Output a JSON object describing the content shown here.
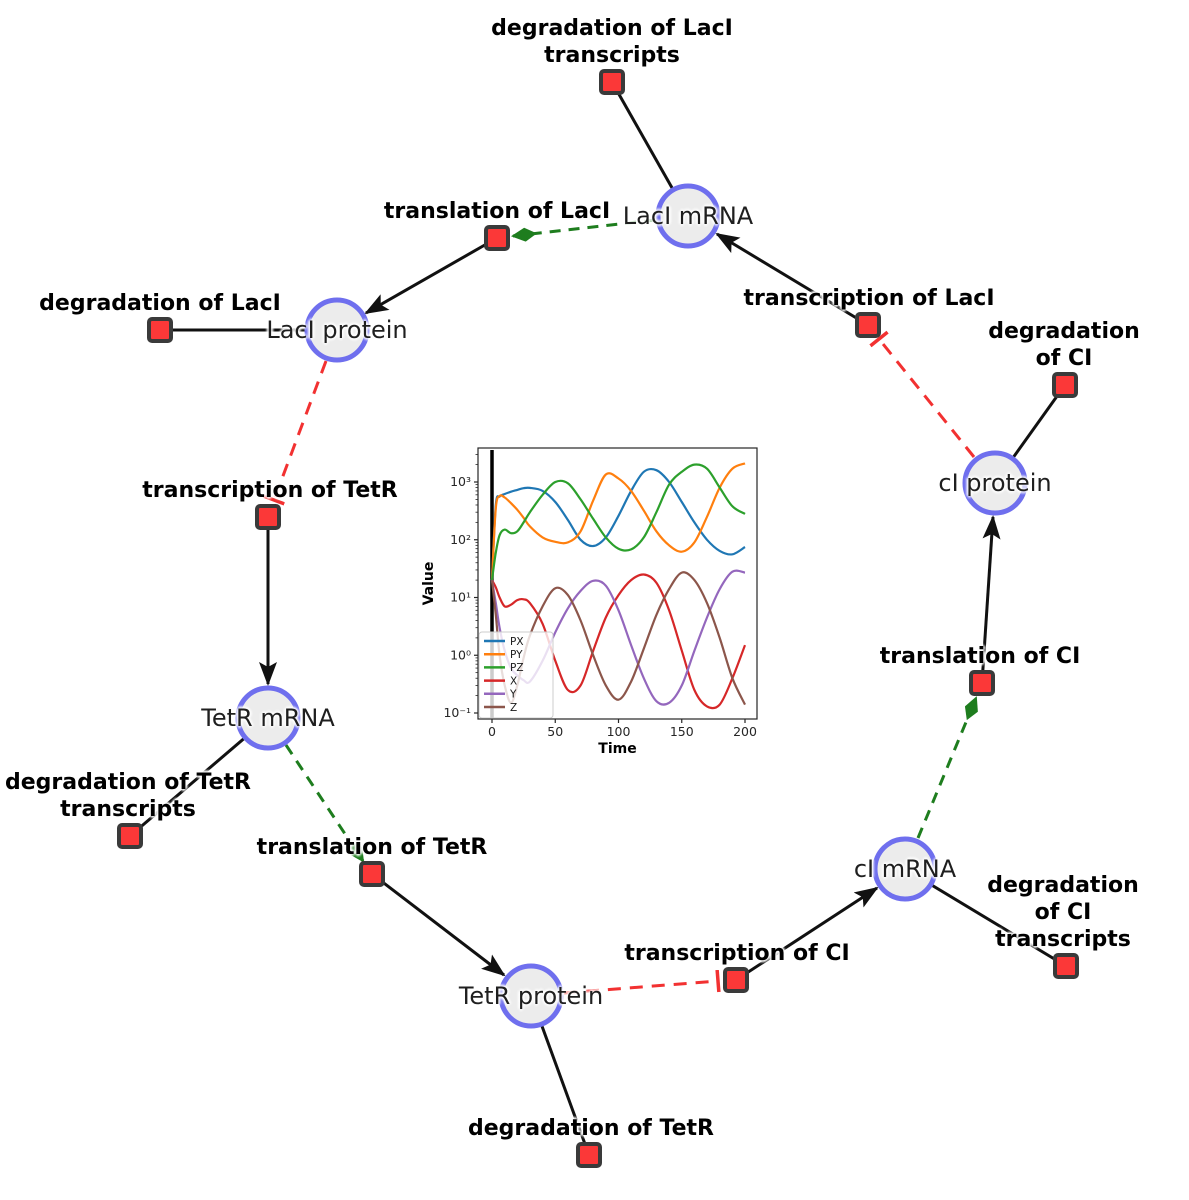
{
  "diagram": {
    "title": "repressilator reaction network",
    "species": [
      {
        "id": "laci-mrna",
        "label": "LacI mRNA"
      },
      {
        "id": "laci-protein",
        "label": "LacI protein"
      },
      {
        "id": "tetr-mrna",
        "label": "TetR mRNA"
      },
      {
        "id": "tetr-protein",
        "label": "TetR protein"
      },
      {
        "id": "ci-mrna",
        "label": "cI mRNA"
      },
      {
        "id": "ci-protein",
        "label": "cI protein"
      }
    ],
    "reactions": [
      {
        "id": "degradation-laci-transcripts",
        "label": "degradation of LacI\ntranscripts"
      },
      {
        "id": "translation-laci",
        "label": "translation of LacI"
      },
      {
        "id": "transcription-laci",
        "label": "transcription of LacI"
      },
      {
        "id": "degradation-laci",
        "label": "degradation of LacI"
      },
      {
        "id": "transcription-tetr",
        "label": "transcription of TetR"
      },
      {
        "id": "degradation-ci",
        "label": "degradation of CI"
      },
      {
        "id": "translation-ci",
        "label": "translation of CI"
      },
      {
        "id": "degradation-tetr-transcripts",
        "label": "degradation of TetR\ntranscripts"
      },
      {
        "id": "translation-tetr",
        "label": "translation of TetR"
      },
      {
        "id": "transcription-ci",
        "label": "transcription of CI"
      },
      {
        "id": "degradation-ci-transcripts",
        "label": "degradation of CI\ntranscripts"
      },
      {
        "id": "degradation-tetr",
        "label": "degradation of TetR"
      }
    ],
    "edge_types": {
      "reactant_product": "black solid, arrowhead",
      "modifier": "green dashed, diamond head",
      "inhibition": "red dashed, tee head"
    }
  },
  "colors": {
    "species_fill": "#ececec",
    "species_stroke": "#6f6fee",
    "reaction_fill": "#fb3838",
    "reaction_stroke": "#3a3a3a",
    "edge_black": "#111111",
    "edge_modifier_green": "#1e7d1e",
    "edge_inhibition_red": "#f23131"
  },
  "chart_data": {
    "type": "line",
    "title": "",
    "xlabel": "Time",
    "ylabel": "Value",
    "yscale": "log",
    "xlim": [
      -10,
      210
    ],
    "ylim_log10": [
      -1.1,
      3.59
    ],
    "x_ticks": [
      0,
      50,
      100,
      150,
      200
    ],
    "y_tick_labels": [
      "10⁻¹",
      "10⁰",
      "10¹",
      "10²",
      "10³"
    ],
    "y_tick_decades": [
      -1,
      0,
      1,
      2,
      3
    ],
    "grid": false,
    "legend_position": "lower left",
    "vline_x": 0,
    "x": [
      0,
      3,
      6,
      10,
      15,
      20,
      25,
      30,
      40,
      50,
      60,
      70,
      80,
      90,
      100,
      110,
      120,
      130,
      140,
      150,
      160,
      170,
      180,
      190,
      200
    ],
    "series": [
      {
        "name": "PX",
        "color": "#1f77b4",
        "values": [
          20,
          400,
          560,
          620,
          680,
          730,
          780,
          790,
          700,
          450,
          220,
          100,
          78,
          110,
          260,
          700,
          1500,
          1600,
          1000,
          450,
          200,
          100,
          64,
          56,
          75
        ]
      },
      {
        "name": "PY",
        "color": "#ff7f0e",
        "values": [
          20,
          350,
          570,
          540,
          430,
          330,
          240,
          170,
          110,
          92,
          90,
          140,
          480,
          1350,
          1150,
          700,
          320,
          140,
          80,
          62,
          90,
          250,
          800,
          1700,
          2100
        ]
      },
      {
        "name": "PZ",
        "color": "#2ca02c",
        "values": [
          20,
          60,
          120,
          150,
          130,
          140,
          200,
          300,
          600,
          1000,
          950,
          500,
          230,
          110,
          70,
          68,
          110,
          300,
          900,
          1500,
          2000,
          1700,
          800,
          380,
          280
        ]
      },
      {
        "name": "X",
        "color": "#d62728",
        "values": [
          20,
          15,
          10,
          7,
          7.5,
          9,
          9.3,
          8,
          3.5,
          0.8,
          0.25,
          0.3,
          1.2,
          4.5,
          11,
          20,
          25,
          18,
          6,
          1.2,
          0.25,
          0.13,
          0.14,
          0.4,
          1.5
        ]
      },
      {
        "name": "Y",
        "color": "#9467bd",
        "values": [
          20,
          8,
          3,
          1.2,
          0.6,
          0.45,
          0.37,
          0.35,
          0.8,
          2.5,
          6.5,
          13,
          19.5,
          16,
          6,
          1.5,
          0.4,
          0.16,
          0.15,
          0.3,
          1.2,
          4.5,
          14,
          28,
          27
        ]
      },
      {
        "name": "Z",
        "color": "#8c564b",
        "values": [
          20,
          5,
          1,
          0.3,
          0.15,
          0.3,
          0.9,
          2.2,
          7,
          14.5,
          11,
          4,
          1.0,
          0.3,
          0.17,
          0.35,
          1.3,
          5,
          14,
          27,
          20,
          8,
          2,
          0.4,
          0.14
        ]
      }
    ]
  }
}
